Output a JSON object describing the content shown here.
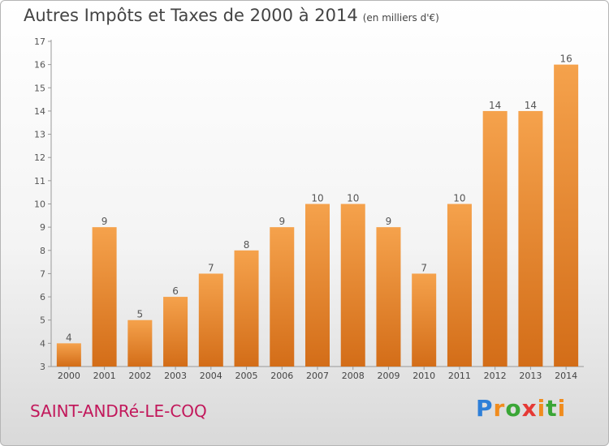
{
  "title": "Autres Impôts et Taxes de 2000 à 2014",
  "subtitle": "(en milliers d'€)",
  "commune": "SAINT-ANDRé-LE-COQ",
  "logo": {
    "p": "P",
    "r": "r",
    "o": "o",
    "x": "x",
    "i": "i",
    "t": "t",
    "i2": "i"
  },
  "colors": {
    "bar": "#f08c1e",
    "bar_dark": "#d8751a",
    "commune": "#c2185b"
  },
  "chart_data": {
    "type": "bar",
    "categories": [
      "2000",
      "2001",
      "2002",
      "2003",
      "2004",
      "2005",
      "2006",
      "2007",
      "2008",
      "2009",
      "2010",
      "2011",
      "2012",
      "2013",
      "2014"
    ],
    "values": [
      4,
      9,
      5,
      6,
      7,
      8,
      9,
      10,
      10,
      9,
      7,
      10,
      14,
      14,
      16
    ],
    "ylim": [
      3,
      17
    ],
    "yticks": [
      3,
      4,
      5,
      6,
      7,
      8,
      9,
      10,
      11,
      12,
      13,
      14,
      15,
      16,
      17
    ],
    "grid": false,
    "data_labels": true
  }
}
